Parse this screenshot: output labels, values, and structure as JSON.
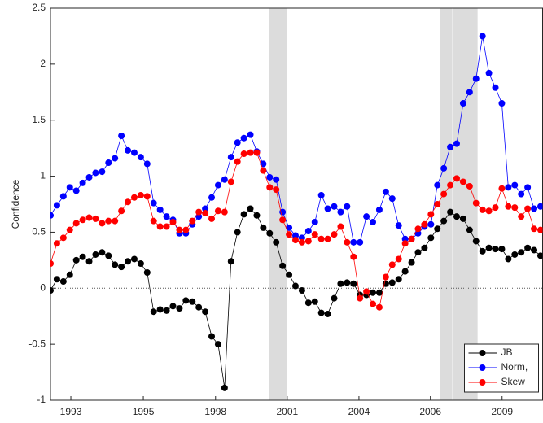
{
  "chart_data": {
    "type": "line",
    "y_label": "Confidence",
    "x": [
      1992.25,
      1992.5,
      1992.75,
      1993,
      1993.25,
      1993.5,
      1993.75,
      1994,
      1994.25,
      1994.5,
      1994.75,
      1995,
      1995.25,
      1995.5,
      1995.75,
      1996,
      1996.25,
      1996.5,
      1996.75,
      1997,
      1997.25,
      1997.5,
      1997.75,
      1998,
      1998.25,
      1998.5,
      1998.75,
      1999,
      1999.25,
      1999.5,
      1999.75,
      2000,
      2000.25,
      2000.5,
      2000.75,
      2001,
      2001.25,
      2001.5,
      2001.75,
      2002,
      2002.25,
      2002.5,
      2002.75,
      2003,
      2003.25,
      2003.5,
      2003.75,
      2004,
      2004.25,
      2004.5,
      2004.75,
      2005,
      2005.25,
      2005.5,
      2005.75,
      2006,
      2006.25,
      2006.5,
      2006.75,
      2007,
      2007.25,
      2007.5,
      2007.75,
      2008,
      2008.25,
      2008.5,
      2008.75,
      2009,
      2009.25,
      2009.5,
      2009.75,
      2010,
      2010.25,
      2010.5,
      2010.75,
      2011,
      2011.25
    ],
    "series": [
      {
        "name": "JB",
        "color": "#000000",
        "values": [
          -0.02,
          0.08,
          0.06,
          0.12,
          0.25,
          0.28,
          0.24,
          0.3,
          0.32,
          0.29,
          0.21,
          0.19,
          0.24,
          0.26,
          0.22,
          0.14,
          -0.21,
          -0.19,
          -0.2,
          -0.16,
          -0.18,
          -0.11,
          -0.12,
          -0.17,
          -0.21,
          -0.43,
          -0.5,
          -0.89,
          0.24,
          0.5,
          0.66,
          0.71,
          0.65,
          0.54,
          0.49,
          0.41,
          0.2,
          0.12,
          0.02,
          -0.02,
          -0.13,
          -0.12,
          -0.22,
          -0.23,
          -0.09,
          0.04,
          0.05,
          0.04,
          -0.06,
          -0.06,
          -0.04,
          -0.04,
          0.04,
          0.05,
          0.08,
          0.15,
          0.23,
          0.32,
          0.36,
          0.45,
          0.53,
          0.6,
          0.68,
          0.64,
          0.62,
          0.52,
          0.42,
          0.33,
          0.36,
          0.35,
          0.35,
          0.26,
          0.3,
          0.32,
          0.36,
          0.34,
          0.29
        ]
      },
      {
        "name": "Norm,",
        "color": "#0000ff",
        "values": [
          0.65,
          0.74,
          0.82,
          0.9,
          0.87,
          0.94,
          0.99,
          1.03,
          1.04,
          1.12,
          1.16,
          1.36,
          1.23,
          1.21,
          1.17,
          1.11,
          0.76,
          0.7,
          0.64,
          0.61,
          0.49,
          0.49,
          0.57,
          0.64,
          0.71,
          0.81,
          0.92,
          0.97,
          1.17,
          1.3,
          1.34,
          1.37,
          1.22,
          1.11,
          0.99,
          0.97,
          0.68,
          0.54,
          0.47,
          0.45,
          0.51,
          0.59,
          0.83,
          0.71,
          0.73,
          0.68,
          0.73,
          0.41,
          0.41,
          0.64,
          0.59,
          0.7,
          0.86,
          0.8,
          0.56,
          0.44,
          0.44,
          0.49,
          0.55,
          0.57,
          0.92,
          1.07,
          1.26,
          1.29,
          1.65,
          1.75,
          1.87,
          2.25,
          1.92,
          1.79,
          1.65,
          0.9,
          0.92,
          0.84,
          0.9,
          0.71,
          0.73
        ]
      },
      {
        "name": "Skew",
        "color": "#ff0000",
        "values": [
          0.22,
          0.4,
          0.45,
          0.52,
          0.58,
          0.61,
          0.63,
          0.62,
          0.58,
          0.6,
          0.6,
          0.69,
          0.77,
          0.81,
          0.83,
          0.82,
          0.6,
          0.55,
          0.55,
          0.59,
          0.52,
          0.52,
          0.6,
          0.68,
          0.67,
          0.62,
          0.69,
          0.68,
          0.95,
          1.13,
          1.2,
          1.21,
          1.21,
          1.05,
          0.9,
          0.88,
          0.61,
          0.48,
          0.43,
          0.41,
          0.42,
          0.48,
          0.44,
          0.44,
          0.48,
          0.55,
          0.41,
          0.28,
          -0.09,
          -0.03,
          -0.14,
          -0.17,
          0.1,
          0.21,
          0.26,
          0.4,
          0.44,
          0.53,
          0.57,
          0.66,
          0.75,
          0.84,
          0.92,
          0.98,
          0.95,
          0.91,
          0.76,
          0.7,
          0.69,
          0.72,
          0.89,
          0.73,
          0.72,
          0.64,
          0.71,
          0.53,
          0.52
        ]
      }
    ],
    "xlim": [
      1992.25,
      2011.33
    ],
    "ylim": [
      -1,
      2.5
    ],
    "xticks": [
      {
        "value": 1993.04,
        "label": "1993"
      },
      {
        "value": 1995.85,
        "label": "1995"
      },
      {
        "value": 1998.65,
        "label": "1998"
      },
      {
        "value": 2001.43,
        "label": "2001"
      },
      {
        "value": 2004.21,
        "label": "2004"
      },
      {
        "value": 2006.98,
        "label": "2006"
      },
      {
        "value": 2009.76,
        "label": "2009"
      }
    ],
    "yticks": [
      -1,
      -0.5,
      0,
      0.5,
      1,
      1.5,
      2,
      2.5
    ],
    "shaded_regions": [
      [
        2000.74,
        2001.43
      ],
      [
        2007.36,
        2007.83
      ],
      [
        2007.86,
        2008.81
      ]
    ],
    "shade_color": "#dcdcdc",
    "zero_line": true,
    "grid": false,
    "legend": "lower-right"
  }
}
